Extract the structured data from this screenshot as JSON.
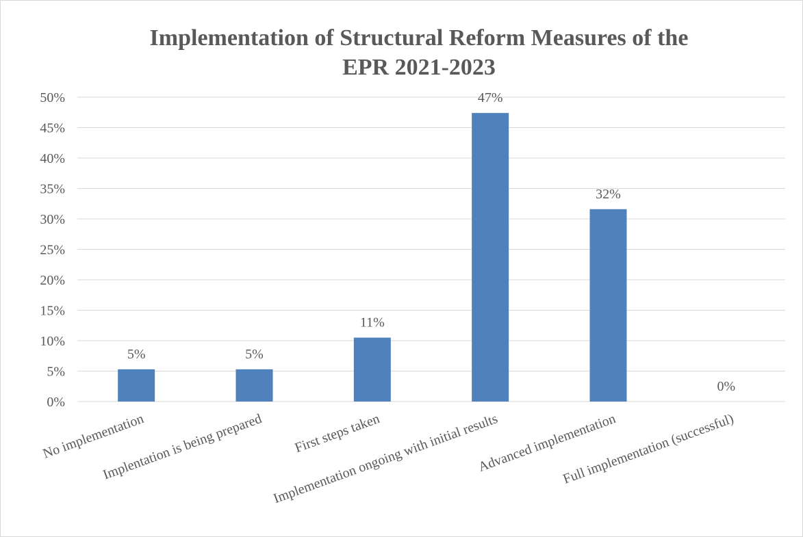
{
  "chart_data": {
    "type": "bar",
    "title_lines": [
      "Implementation of Structural Reform Measures of the",
      "EPR 2021-2023"
    ],
    "categories": [
      "No implementation",
      "Implentation is being prepared",
      "First steps taken",
      "Implementation ongoing with initial results",
      "Advanced implementation",
      "Full implementation (successful)"
    ],
    "values": [
      5.3,
      5.3,
      10.5,
      47.4,
      31.6,
      0
    ],
    "data_labels": [
      "5%",
      "5%",
      "11%",
      "47%",
      "32%",
      "0%"
    ],
    "ylim": [
      0,
      50
    ],
    "y_ticks": [
      0,
      5,
      10,
      15,
      20,
      25,
      30,
      35,
      40,
      45,
      50
    ],
    "y_tick_labels": [
      "0%",
      "5%",
      "10%",
      "15%",
      "20%",
      "25%",
      "30%",
      "35%",
      "40%",
      "45%",
      "50%"
    ],
    "bar_color": "#4F81BD",
    "grid": true,
    "legend": "none"
  }
}
